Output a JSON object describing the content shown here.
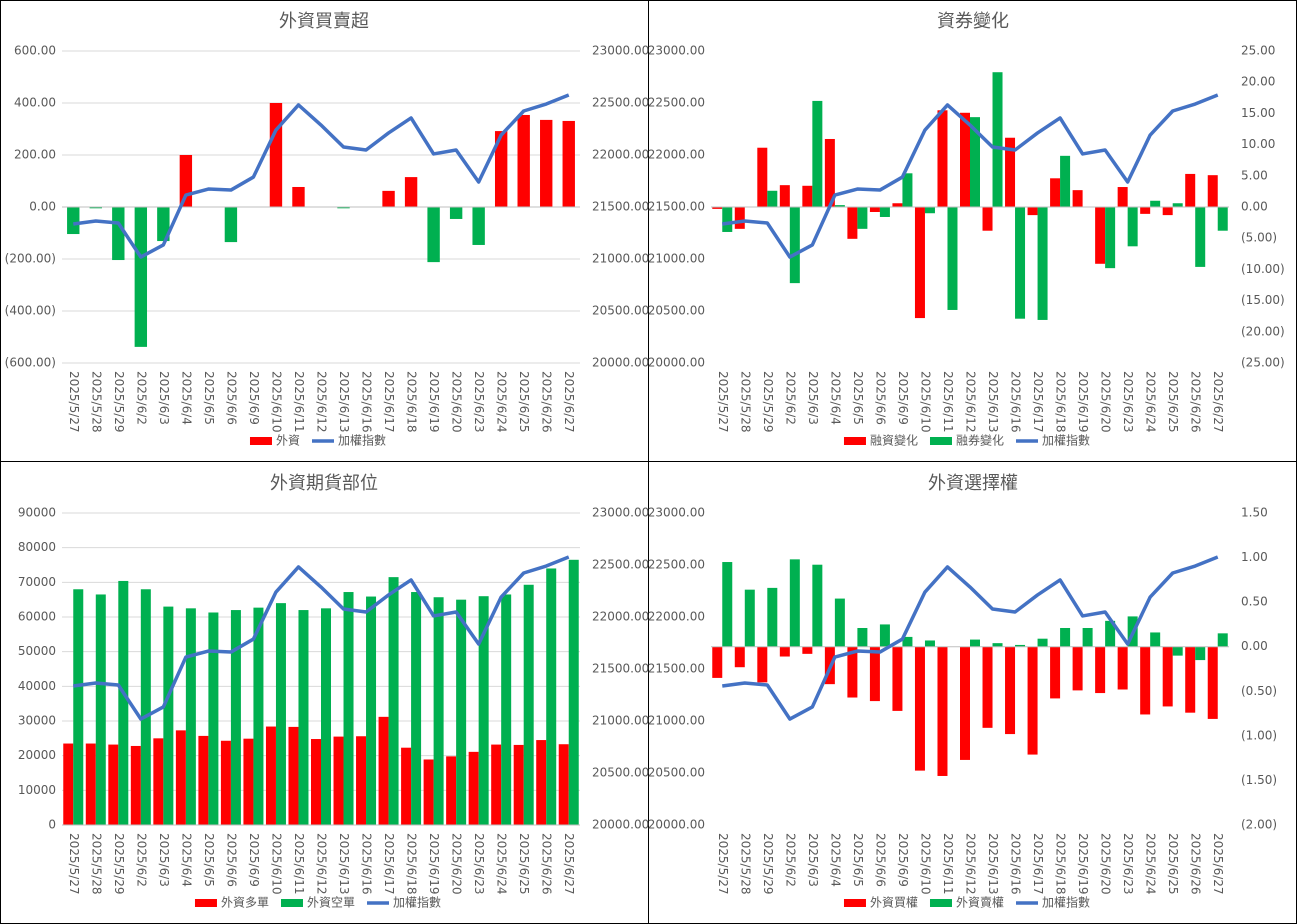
{
  "chart_data": [
    {
      "type": "combo",
      "title": "外資買賣超",
      "categories": [
        "2025/5/27",
        "2025/5/28",
        "2025/5/29",
        "2025/6/2",
        "2025/6/3",
        "2025/6/4",
        "2025/6/5",
        "2025/6/6",
        "2025/6/9",
        "2025/6/10",
        "2025/6/11",
        "2025/6/12",
        "2025/6/13",
        "2025/6/16",
        "2025/6/17",
        "2025/6/18",
        "2025/6/19",
        "2025/6/20",
        "2025/6/23",
        "2025/6/24",
        "2025/6/25",
        "2025/6/26",
        "2025/6/27"
      ],
      "series": [
        {
          "name": "外資",
          "type": "bar",
          "axis": "y",
          "color": "#ff0000",
          "negative_color": "#00b050",
          "values": [
            -104,
            -5,
            -204,
            -538,
            -131,
            200,
            0,
            -135,
            0,
            400,
            77,
            0,
            -5,
            0,
            62,
            115,
            -212,
            -46,
            -146,
            292,
            354,
            335,
            331
          ]
        },
        {
          "name": "加權指數",
          "type": "line",
          "axis": "y2",
          "color": "#4472c4",
          "values": [
            21337,
            21365,
            21346,
            21019,
            21135,
            21615,
            21673,
            21663,
            21788,
            22240,
            22481,
            22288,
            22077,
            22048,
            22212,
            22356,
            22010,
            22048,
            21740,
            22192,
            22423,
            22490,
            22577
          ]
        }
      ],
      "ylim": [
        -600,
        600
      ],
      "yticks": [
        {
          "value": 600,
          "label": "600.00"
        },
        {
          "value": 400,
          "label": "400.00"
        },
        {
          "value": 200,
          "label": "200.00"
        },
        {
          "value": 0,
          "label": "0.00"
        },
        {
          "value": -200,
          "label": "(200.00)"
        },
        {
          "value": -400,
          "label": "(400.00)"
        },
        {
          "value": -600,
          "label": "(600.00)"
        }
      ],
      "y2lim": [
        20000,
        23000
      ],
      "y2ticks": [
        {
          "value": 23000,
          "label": "23000.00"
        },
        {
          "value": 22500,
          "label": "22500.00"
        },
        {
          "value": 22000,
          "label": "22000.00"
        },
        {
          "value": 21500,
          "label": "21500.00"
        },
        {
          "value": 21000,
          "label": "21000.00"
        },
        {
          "value": 20500,
          "label": "20500.00"
        },
        {
          "value": 20000,
          "label": "20000.00"
        }
      ],
      "grid": true,
      "negative_tick_color": "#ff0000",
      "legend": "bottom"
    },
    {
      "type": "combo",
      "title": "資券變化",
      "categories": [
        "2025/5/27",
        "2025/5/28",
        "2025/5/29",
        "2025/6/2",
        "2025/6/3",
        "2025/6/4",
        "2025/6/5",
        "2025/6/6",
        "2025/6/9",
        "2025/6/10",
        "2025/6/11",
        "2025/6/12",
        "2025/6/13",
        "2025/6/16",
        "2025/6/17",
        "2025/6/18",
        "2025/6/19",
        "2025/6/20",
        "2025/6/23",
        "2025/6/24",
        "2025/6/25",
        "2025/6/26",
        "2025/6/27"
      ],
      "series": [
        {
          "name": "融資變化",
          "type": "bar",
          "axis": "y2",
          "color": "#ff0000",
          "values": [
            -0.3,
            -3.5,
            9.5,
            3.5,
            3.4,
            10.9,
            -5.1,
            -0.8,
            0.6,
            -17.8,
            15.5,
            15.1,
            -3.8,
            11.1,
            -1.3,
            4.6,
            2.7,
            -9.1,
            3.2,
            -1.1,
            -1.3,
            5.3,
            5.1
          ]
        },
        {
          "name": "融券變化",
          "type": "bar",
          "axis": "y2",
          "color": "#00b050",
          "values": [
            -4.0,
            0,
            2.6,
            -12.2,
            17.0,
            0.3,
            -3.5,
            -1.6,
            5.4,
            -1.0,
            -16.5,
            14.4,
            21.6,
            -17.9,
            -18.1,
            8.2,
            0,
            -9.8,
            -6.3,
            1.0,
            0.6,
            -9.6,
            -3.8
          ]
        },
        {
          "name": "加權指數",
          "type": "line",
          "axis": "y",
          "color": "#4472c4",
          "values": [
            21337,
            21365,
            21346,
            21019,
            21135,
            21615,
            21673,
            21663,
            21788,
            22240,
            22481,
            22288,
            22077,
            22048,
            22212,
            22356,
            22010,
            22048,
            21740,
            22192,
            22423,
            22490,
            22577
          ]
        }
      ],
      "ylim": [
        20000,
        23000
      ],
      "yticks": [
        {
          "value": 23000,
          "label": "23000.00"
        },
        {
          "value": 22500,
          "label": "22500.00"
        },
        {
          "value": 22000,
          "label": "22000.00"
        },
        {
          "value": 21500,
          "label": "21500.00"
        },
        {
          "value": 21000,
          "label": "21000.00"
        },
        {
          "value": 20500,
          "label": "20500.00"
        },
        {
          "value": 20000,
          "label": "20000.00"
        }
      ],
      "y2lim": [
        -25,
        25
      ],
      "y2ticks": [
        {
          "value": 25,
          "label": "25.00"
        },
        {
          "value": 20,
          "label": "20.00"
        },
        {
          "value": 15,
          "label": "15.00"
        },
        {
          "value": 10,
          "label": "10.00"
        },
        {
          "value": 5,
          "label": "5.00"
        },
        {
          "value": 0,
          "label": "0.00"
        },
        {
          "value": -5,
          "label": "(5.00)"
        },
        {
          "value": -10,
          "label": "(10.00)"
        },
        {
          "value": -15,
          "label": "(15.00)"
        },
        {
          "value": -20,
          "label": "(20.00)"
        },
        {
          "value": -25,
          "label": "(25.00)"
        }
      ],
      "grid": false,
      "negative_tick_color": "#ff0000",
      "legend": "bottom"
    },
    {
      "type": "combo",
      "title": "外資期貨部位",
      "categories": [
        "2025/5/27",
        "2025/5/28",
        "2025/5/29",
        "2025/6/2",
        "2025/6/3",
        "2025/6/4",
        "2025/6/5",
        "2025/6/6",
        "2025/6/9",
        "2025/6/10",
        "2025/6/11",
        "2025/6/12",
        "2025/6/13",
        "2025/6/16",
        "2025/6/17",
        "2025/6/18",
        "2025/6/19",
        "2025/6/20",
        "2025/6/23",
        "2025/6/24",
        "2025/6/25",
        "2025/6/26",
        "2025/6/27"
      ],
      "series": [
        {
          "name": "外資多單",
          "type": "bar",
          "axis": "y",
          "color": "#ff0000",
          "values": [
            23500,
            23500,
            23200,
            22800,
            25000,
            27300,
            25700,
            24300,
            24900,
            28400,
            28300,
            24800,
            25500,
            25600,
            31200,
            22300,
            18900,
            19800,
            21100,
            23200,
            23100,
            24500,
            23300
          ]
        },
        {
          "name": "外資空單",
          "type": "bar",
          "axis": "y",
          "color": "#00b050",
          "values": [
            68000,
            66500,
            70400,
            68000,
            63000,
            62500,
            61300,
            62000,
            62700,
            64000,
            62000,
            62500,
            67200,
            65900,
            71500,
            67200,
            65700,
            65000,
            66000,
            66500,
            69300,
            74000,
            76500
          ]
        },
        {
          "name": "加權指數",
          "type": "line",
          "axis": "y2",
          "color": "#4472c4",
          "values": [
            21337,
            21365,
            21346,
            21019,
            21135,
            21615,
            21673,
            21663,
            21788,
            22240,
            22481,
            22288,
            22077,
            22048,
            22212,
            22356,
            22010,
            22048,
            21740,
            22192,
            22423,
            22490,
            22577
          ]
        }
      ],
      "ylim": [
        0,
        90000
      ],
      "yticks": [
        90000,
        80000,
        70000,
        60000,
        50000,
        40000,
        30000,
        20000,
        10000,
        0
      ],
      "y2lim": [
        20000,
        23000
      ],
      "y2ticks": [
        {
          "value": 23000,
          "label": "23000.00"
        },
        {
          "value": 22500,
          "label": "22500.00"
        },
        {
          "value": 22000,
          "label": "22000.00"
        },
        {
          "value": 21500,
          "label": "21500.00"
        },
        {
          "value": 21000,
          "label": "21000.00"
        },
        {
          "value": 20500,
          "label": "20500.00"
        },
        {
          "value": 20000,
          "label": "20000.00"
        }
      ],
      "grid": true,
      "negative_tick_color": "#ff0000",
      "legend": "bottom"
    },
    {
      "type": "combo",
      "title": "外資選擇權",
      "categories": [
        "2025/5/27",
        "2025/5/28",
        "2025/5/29",
        "2025/6/2",
        "2025/6/3",
        "2025/6/4",
        "2025/6/5",
        "2025/6/6",
        "2025/6/9",
        "2025/6/10",
        "2025/6/11",
        "2025/6/12",
        "2025/6/13",
        "2025/6/16",
        "2025/6/17",
        "2025/6/18",
        "2025/6/19",
        "2025/6/20",
        "2025/6/23",
        "2025/6/24",
        "2025/6/25",
        "2025/6/26",
        "2025/6/27"
      ],
      "series": [
        {
          "name": "外資買權",
          "type": "bar",
          "axis": "y2",
          "color": "#ff0000",
          "values": [
            -0.35,
            -0.23,
            -0.4,
            -0.11,
            -0.08,
            -0.42,
            -0.57,
            -0.61,
            -0.72,
            -1.39,
            -1.45,
            -1.27,
            -0.91,
            -0.98,
            -1.21,
            -0.58,
            -0.49,
            -0.52,
            -0.48,
            -0.76,
            -0.67,
            -0.74,
            -0.81
          ]
        },
        {
          "name": "外資賣權",
          "type": "bar",
          "axis": "y2",
          "color": "#00b050",
          "values": [
            0.95,
            0.64,
            0.66,
            0.98,
            0.92,
            0.54,
            0.21,
            0.25,
            0.11,
            0.07,
            0,
            0.08,
            0.04,
            0.02,
            0.09,
            0.21,
            0.21,
            0.29,
            0.34,
            0.16,
            -0.1,
            -0.15,
            0.15
          ]
        },
        {
          "name": "加權指數",
          "type": "line",
          "axis": "y",
          "color": "#4472c4",
          "values": [
            21337,
            21365,
            21346,
            21019,
            21135,
            21615,
            21673,
            21663,
            21788,
            22240,
            22481,
            22288,
            22077,
            22048,
            22212,
            22356,
            22010,
            22048,
            21740,
            22192,
            22423,
            22490,
            22577
          ]
        }
      ],
      "ylim": [
        20000,
        23000
      ],
      "yticks": [
        {
          "value": 23000,
          "label": "23000.00"
        },
        {
          "value": 22500,
          "label": "22500.00"
        },
        {
          "value": 22000,
          "label": "22000.00"
        },
        {
          "value": 21500,
          "label": "21500.00"
        },
        {
          "value": 21000,
          "label": "21000.00"
        },
        {
          "value": 20500,
          "label": "20500.00"
        },
        {
          "value": 20000,
          "label": "20000.00"
        }
      ],
      "y2lim": [
        -2,
        1.5
      ],
      "y2ticks": [
        {
          "value": 1.5,
          "label": "1.50"
        },
        {
          "value": 1,
          "label": "1.00"
        },
        {
          "value": 0.5,
          "label": "0.50"
        },
        {
          "value": 0,
          "label": "0.00"
        },
        {
          "value": -0.5,
          "label": "(0.50)"
        },
        {
          "value": -1,
          "label": "(1.00)"
        },
        {
          "value": -1.5,
          "label": "(1.50)"
        },
        {
          "value": -2,
          "label": "(2.00)"
        }
      ],
      "grid": false,
      "negative_tick_color": "#ff0000",
      "legend": "bottom"
    }
  ]
}
